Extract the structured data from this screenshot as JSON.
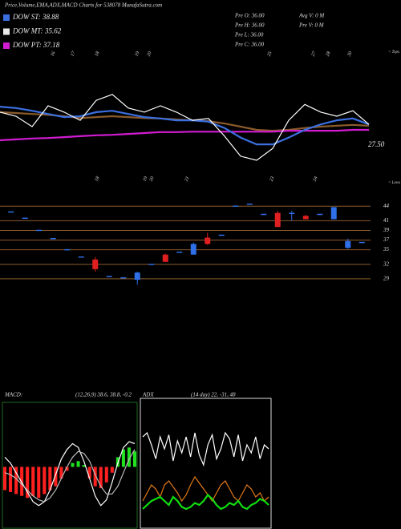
{
  "header": {
    "title": "Price,Volume,EMA,ADX,MACD Charts for 538078 MunafaSutra.com",
    "legend": [
      {
        "label": "DOW ST: 38.88",
        "color": "#3b6fe0"
      },
      {
        "label": "DOW MT: 35.62",
        "color": "#e8e8e8"
      },
      {
        "label": "DOW PT: 37.18",
        "color": "#d21cd2"
      }
    ],
    "info": [
      "Pre  O: 36.00",
      "Pre  H: 36.00",
      "Pre  L: 36.00",
      "Pre  C: 36.00"
    ],
    "volume": [
      "Avg V: 0  M",
      "Pre  V: 0  M"
    ]
  },
  "chart_data": [
    {
      "type": "line",
      "last_label": "27.50",
      "tops_label": "< Tops",
      "lows_label": "< Lows",
      "tops": [
        "16",
        "17",
        "18",
        "19",
        "20",
        "25",
        "27",
        "28",
        "30"
      ],
      "lows": [
        "18",
        "19",
        "20",
        "21",
        "23",
        "24"
      ],
      "ylim": [
        20,
        50
      ],
      "series": [
        {
          "color": "#8b5a2b",
          "values": [
            35.9,
            35.7,
            35.5,
            35.3,
            35.0,
            34.6,
            34.8,
            35.0,
            34.8,
            34.6,
            34.5,
            34.3,
            34.1,
            33.9,
            33.4,
            32.7,
            32.0,
            31.8,
            32.0,
            32.4,
            32.7,
            32.9,
            33.1,
            32.9
          ]
        },
        {
          "color": "#d21cd2",
          "values": [
            29.7,
            29.9,
            30.1,
            30.2,
            30.4,
            30.6,
            30.8,
            30.9,
            31.1,
            31.3,
            31.5,
            31.5,
            31.6,
            31.6,
            31.6,
            31.6,
            31.6,
            31.6,
            31.8,
            31.8,
            31.8,
            31.8,
            32.0,
            32.0
          ]
        },
        {
          "color": "#3b6fe0",
          "values": [
            37.1,
            36.8,
            36.2,
            35.5,
            34.8,
            35.0,
            35.9,
            36.2,
            35.5,
            34.8,
            34.5,
            34.1,
            34.1,
            33.8,
            32.4,
            30.3,
            28.8,
            28.8,
            30.3,
            32.0,
            33.2,
            34.1,
            34.5,
            33.2
          ]
        },
        {
          "color": "#ffffff",
          "values": [
            35.9,
            35.0,
            32.7,
            37.3,
            35.9,
            34.1,
            38.5,
            39.8,
            36.8,
            35.9,
            37.3,
            35.9,
            34.1,
            34.5,
            30.6,
            26.2,
            25.3,
            27.9,
            34.1,
            37.6,
            35.9,
            35.0,
            36.2,
            33.2
          ]
        }
      ]
    },
    {
      "type": "candlestick",
      "ylim": [
        27,
        48.5
      ],
      "yticks": [
        29,
        32,
        35,
        37,
        39,
        41,
        44
      ],
      "grid_color": "#8b5a2b",
      "up_color": "#2f6fe8",
      "down_color": "#e02020",
      "open": [
        42.8,
        41.5,
        39,
        37.3,
        35,
        33.5,
        33,
        29.5,
        29.2,
        28.8,
        32,
        34,
        34.5,
        34,
        37.5,
        38,
        44,
        44.4,
        42.3,
        42.6,
        42.5,
        42,
        42.3,
        41.3,
        35.4,
        36.5
      ],
      "high": [
        42.8,
        41.5,
        39,
        37.3,
        35,
        33.5,
        33.5,
        29.5,
        29.2,
        30.5,
        32,
        34.2,
        34.5,
        36.5,
        38.5,
        38,
        44,
        44.4,
        42.3,
        43,
        43,
        42.2,
        42.3,
        43.8,
        37.3,
        36.5
      ],
      "low": [
        42.8,
        41.5,
        39,
        37.3,
        35,
        33.5,
        30.5,
        29.5,
        29.2,
        27.8,
        32,
        32.5,
        34.5,
        34,
        36,
        38,
        44,
        44.4,
        42.3,
        39.7,
        41,
        41.3,
        42.3,
        41.3,
        35.2,
        36.5
      ],
      "close": [
        42.8,
        41.5,
        39,
        37.3,
        35,
        33.5,
        31,
        29.5,
        29.2,
        30.3,
        32,
        32.5,
        34.5,
        36.2,
        36.2,
        38,
        44,
        44.4,
        42.3,
        39.7,
        42.5,
        41.3,
        42.3,
        43.8,
        36.8,
        36.5
      ]
    },
    {
      "type": "line",
      "name": "MACD:",
      "params": "(12,26,9) 38.6, 38.8, -0.2",
      "frame_color": "#1f6a1f",
      "ylim": [
        -3,
        3
      ],
      "up_color": "#20e020",
      "down_color": "#ff2020",
      "histogram": [
        -1.2,
        -1.3,
        -1.4,
        -1.5,
        -1.6,
        -1.5,
        -1.6,
        -1.4,
        -1.2,
        -1.0,
        -0.6,
        -0.2,
        0.2,
        0.3,
        0.1,
        -0.6,
        -1.0,
        -1.1,
        -0.8,
        -0.3,
        0.5,
        0.9,
        1.0,
        0.8
      ],
      "series": [
        {
          "color": "#ffffff",
          "values": [
            0.5,
            0.2,
            -0.3,
            -0.8,
            -1.3,
            -1.8,
            -2.0,
            -1.8,
            -1.2,
            -0.4,
            0.4,
            0.9,
            1.2,
            1.0,
            0.3,
            -0.6,
            -1.5,
            -2.0,
            -1.7,
            -0.8,
            0.2,
            1.0,
            1.3,
            1.2
          ]
        },
        {
          "color": "#bbbbbb",
          "values": [
            -0.3,
            -0.4,
            -0.6,
            -0.9,
            -1.2,
            -1.5,
            -1.7,
            -1.8,
            -1.6,
            -1.2,
            -0.6,
            0.0,
            0.5,
            0.8,
            0.7,
            0.3,
            -0.4,
            -1.0,
            -1.4,
            -1.4,
            -1.0,
            -0.3,
            0.4,
            0.9
          ]
        }
      ]
    },
    {
      "type": "line",
      "name": "ADX",
      "params": "(14 day) 22, -31, 48",
      "frame_color": "#dddddd",
      "ylim": [
        0,
        60
      ],
      "series": [
        {
          "color": "#ffffff",
          "values": [
            44,
            46,
            40,
            33,
            44,
            38,
            45,
            32,
            42,
            36,
            44,
            34,
            46,
            35,
            30,
            40,
            45,
            33,
            38,
            46,
            43,
            34,
            45,
            32,
            40,
            36,
            44,
            33,
            40,
            38
          ]
        },
        {
          "color": "#e07818",
          "values": [
            12,
            16,
            20,
            18,
            14,
            20,
            22,
            19,
            16,
            12,
            15,
            20,
            24,
            21,
            18,
            15,
            12,
            16,
            20,
            22,
            18,
            14,
            12,
            16,
            20,
            18,
            14,
            16,
            12,
            14
          ]
        },
        {
          "color": "#10e010",
          "values": [
            8,
            10,
            12,
            13,
            14,
            12,
            10,
            14,
            12,
            9,
            8,
            9,
            11,
            10,
            12,
            15,
            13,
            10,
            8,
            9,
            11,
            10,
            12,
            9,
            8,
            10,
            11,
            13,
            12,
            10
          ]
        }
      ]
    }
  ]
}
